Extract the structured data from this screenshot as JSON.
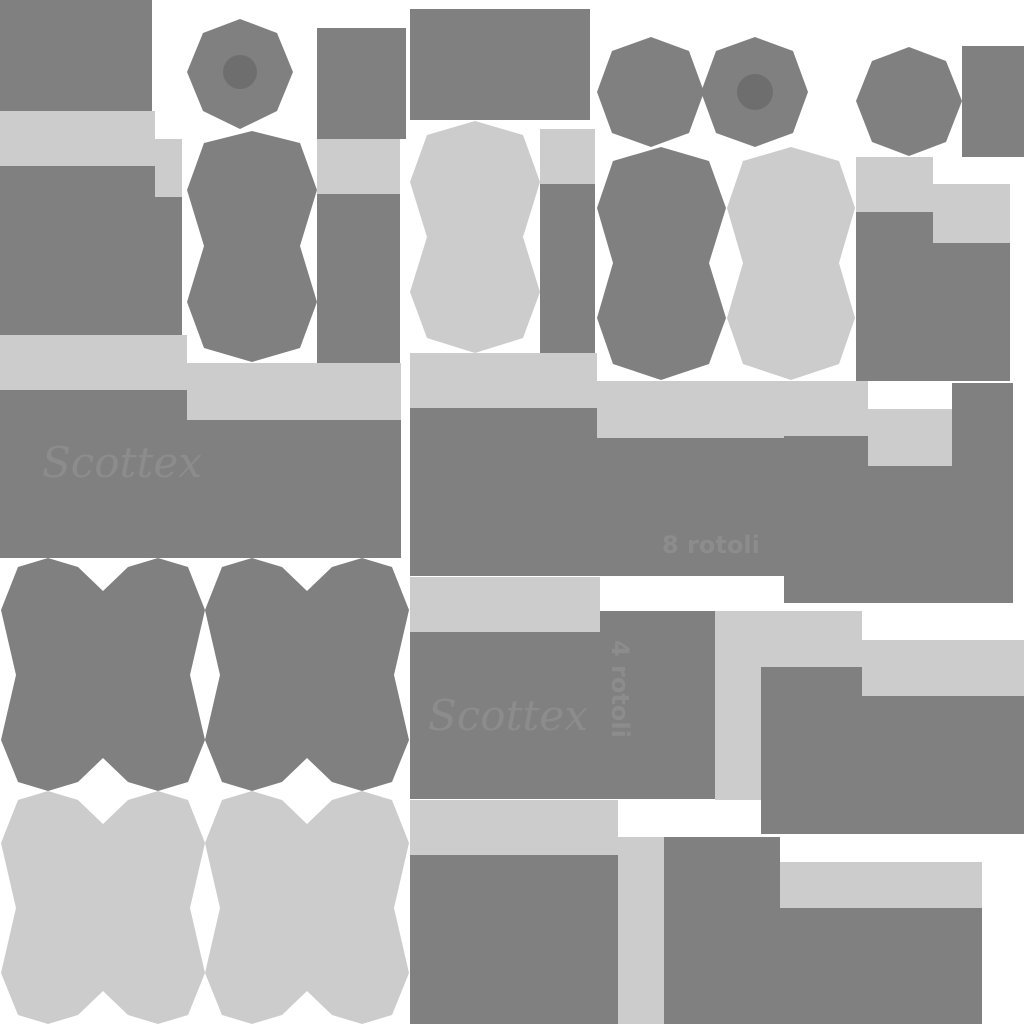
{
  "colors": {
    "background": "#ffffff",
    "dark_panel": "#808080",
    "light_panel": "#cccccc",
    "hole": "#6e6e6e",
    "label": "#8c8c8c"
  },
  "labels": {
    "brand_top": "Scottex",
    "brand_bottom": "Scottex",
    "count_8": "8 rotoli",
    "count_4": "4 rotoli"
  }
}
